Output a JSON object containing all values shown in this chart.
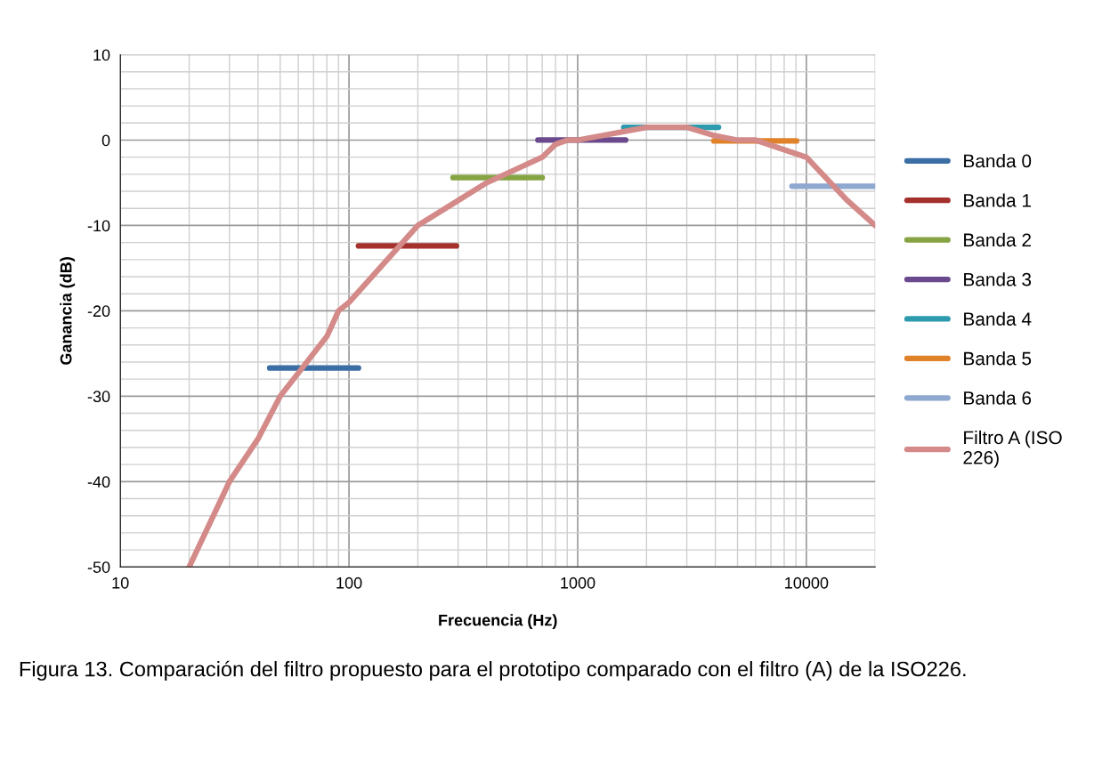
{
  "chart_data": {
    "type": "line",
    "xlabel": "Frecuencia (Hz)",
    "ylabel": "Ganancia (dB)",
    "log": "x",
    "xlim": [
      10,
      20000
    ],
    "xticks": [
      10,
      100,
      1000,
      10000
    ],
    "ylim": [
      -50,
      10
    ],
    "yticks": [
      -50,
      -40,
      -30,
      -20,
      -10,
      0,
      10
    ],
    "grid": true,
    "legend": "right",
    "marker": "none",
    "line_style": "solid",
    "series": [
      {
        "name": "Banda 0",
        "color": "#3a6ea5",
        "x": [
          45,
          110
        ],
        "values": [
          -26.7,
          -26.7
        ]
      },
      {
        "name": "Banda 1",
        "color": "#a5312d",
        "x": [
          110,
          295
        ],
        "values": [
          -12.4,
          -12.4
        ]
      },
      {
        "name": "Banda 2",
        "color": "#86a444",
        "x": [
          285,
          700
        ],
        "values": [
          -4.4,
          -4.4
        ]
      },
      {
        "name": "Banda 3",
        "color": "#6a4a8c",
        "x": [
          670,
          1620
        ],
        "values": [
          0,
          0
        ]
      },
      {
        "name": "Banda 4",
        "color": "#2e9aad",
        "x": [
          1590,
          4130
        ],
        "values": [
          1.5,
          1.5
        ]
      },
      {
        "name": "Banda 5",
        "color": "#e0822a",
        "x": [
          3940,
          9060
        ],
        "values": [
          -0.1,
          -0.1
        ]
      },
      {
        "name": "Banda 6",
        "color": "#8fa8d0",
        "x": [
          8650,
          20000
        ],
        "values": [
          -5.4,
          -5.4
        ]
      },
      {
        "name": "Filtro A (ISO 226)",
        "color": "#d38a88",
        "x": [
          20,
          30,
          40,
          50,
          80,
          90,
          100,
          200,
          400,
          700,
          800,
          900,
          1000,
          2000,
          3000,
          4000,
          5000,
          6000,
          10000,
          15000,
          20000
        ],
        "values": [
          -50,
          -40,
          -35,
          -30,
          -23,
          -20,
          -19,
          -10,
          -5,
          -2,
          -0.5,
          0,
          0,
          1.5,
          1.5,
          0.5,
          0,
          0,
          -2,
          -7,
          -10
        ]
      }
    ],
    "annotations": [
      "Figura 13. Comparación del filtro propuesto para el prototipo comparado con el filtro (A) de la ISO226."
    ]
  }
}
